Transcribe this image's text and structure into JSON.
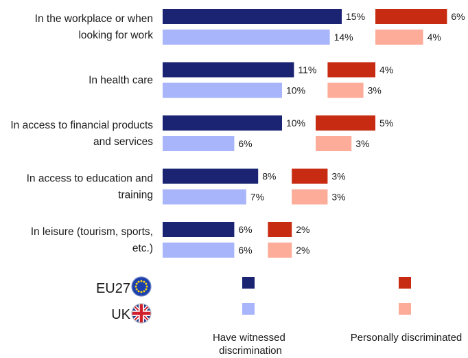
{
  "chart_data": {
    "type": "bar",
    "orientation": "horizontal",
    "categories": [
      [
        "In the workplace or when",
        "looking for work"
      ],
      [
        "In health care"
      ],
      [
        "In access to financial products",
        "and services"
      ],
      [
        "In access to education and",
        "training"
      ],
      [
        "In leisure (tourism, sports,",
        "etc.)"
      ]
    ],
    "groups": [
      {
        "name": "Have witnessed discrimination",
        "label_lines": [
          "Have witnessed",
          "discrimination"
        ],
        "series": [
          {
            "name": "EU27",
            "color": "#1a2472",
            "values": [
              15,
              11,
              10,
              8,
              6
            ]
          },
          {
            "name": "UK",
            "color": "#a8b5fb",
            "values": [
              14,
              10,
              6,
              7,
              6
            ]
          }
        ]
      },
      {
        "name": "Personally discriminated",
        "label_lines": [
          "Personally discriminated"
        ],
        "series": [
          {
            "name": "EU27",
            "color": "#c72b12",
            "values": [
              6,
              4,
              5,
              3,
              2
            ]
          },
          {
            "name": "UK",
            "color": "#fcac98",
            "values": [
              4,
              3,
              3,
              3,
              2
            ]
          }
        ]
      }
    ],
    "value_suffix": "%",
    "legend": {
      "entries": [
        {
          "name": "EU27",
          "icon": "eu-flag-icon"
        },
        {
          "name": "UK",
          "icon": "uk-flag-icon"
        }
      ]
    },
    "title": "",
    "xlabel": "",
    "ylabel": "",
    "grid": false
  }
}
